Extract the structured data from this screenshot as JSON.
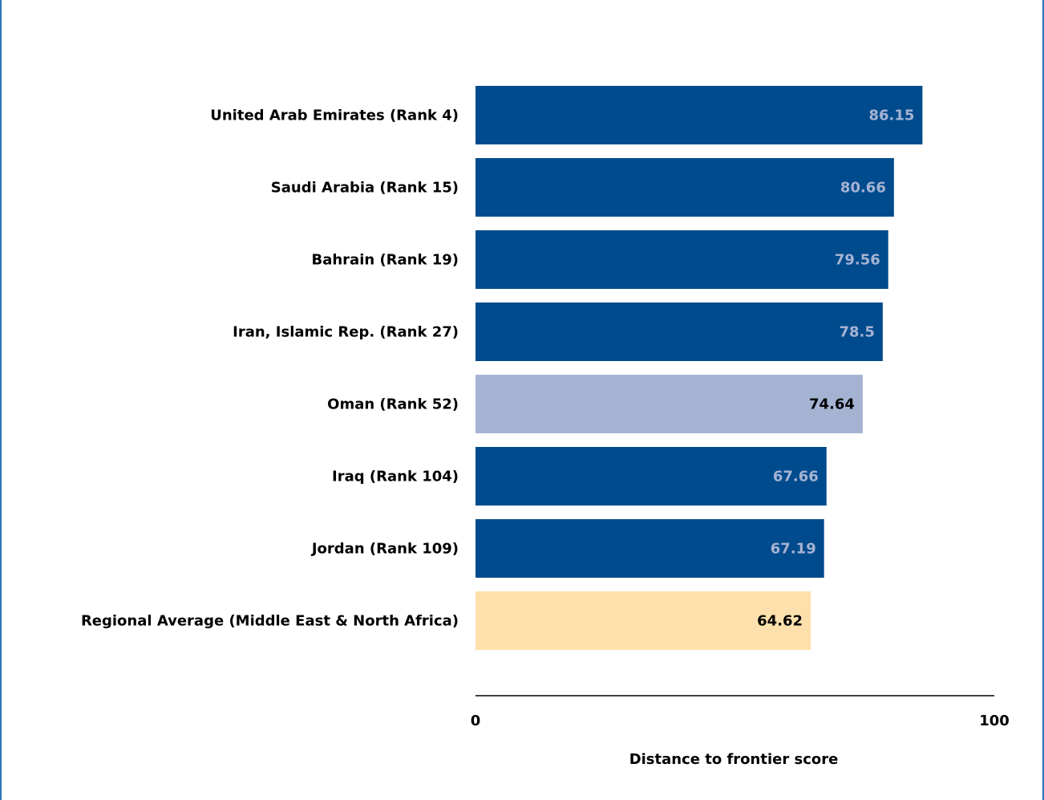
{
  "chart_data": {
    "type": "bar",
    "orientation": "horizontal",
    "categories": [
      "United Arab Emirates (Rank 4)",
      "Saudi Arabia (Rank 15)",
      "Bahrain (Rank 19)",
      "Iran, Islamic Rep. (Rank 27)",
      "Oman (Rank 52)",
      "Iraq (Rank 104)",
      "Jordan (Rank 109)",
      "Regional Average (Middle East & North Africa)"
    ],
    "values": [
      86.15,
      80.66,
      79.56,
      78.5,
      74.64,
      67.66,
      67.19,
      64.62
    ],
    "value_labels": [
      "86.15",
      "80.66",
      "79.56",
      "78.5",
      "74.64",
      "67.66",
      "67.19",
      "64.62"
    ],
    "bar_colors": [
      "#004b8d",
      "#004b8d",
      "#004b8d",
      "#004b8d",
      "#a5b3d3",
      "#004b8d",
      "#004b8d",
      "#fee0ac"
    ],
    "value_label_colors": [
      "#a5b3d3",
      "#a5b3d3",
      "#a5b3d3",
      "#a5b3d3",
      "#000000",
      "#a5b3d3",
      "#a5b3d3",
      "#000000"
    ],
    "title": "",
    "xlabel": "Distance to frontier score",
    "ylabel": "",
    "xlim": [
      0,
      100
    ],
    "x_ticks": [
      "0",
      "100"
    ],
    "grid": false,
    "legend": "none"
  },
  "colors": {
    "frame_border": "#2e74b5",
    "axis_line": "#000000"
  }
}
